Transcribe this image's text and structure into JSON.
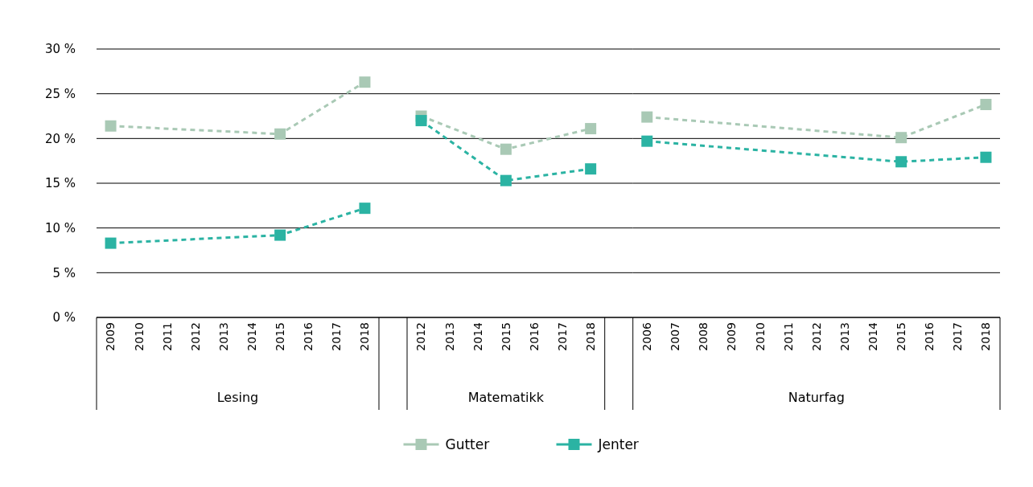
{
  "chart_data": [
    {
      "type": "line",
      "xlabel": "Lesing",
      "categories": [
        "2009",
        "2010",
        "2011",
        "2012",
        "2013",
        "2014",
        "2015",
        "2016",
        "2017",
        "2018"
      ],
      "ylim": [
        0,
        30
      ],
      "yticks": [
        {
          "value": 0,
          "label": "0 %"
        },
        {
          "value": 5,
          "label": "5 %"
        },
        {
          "value": 10,
          "label": "10 %"
        },
        {
          "value": 15,
          "label": "15 %"
        },
        {
          "value": 20,
          "label": "20 %"
        },
        {
          "value": 25,
          "label": "25 %"
        },
        {
          "value": 30,
          "label": "30 %"
        }
      ],
      "grid": "y",
      "marker": "square",
      "line_style": "dashed",
      "legend": "bottom",
      "series": [
        {
          "name": "Gutter",
          "color": "#a9c9b5",
          "values": [
            21.4,
            null,
            null,
            null,
            null,
            null,
            20.5,
            null,
            null,
            26.3
          ]
        },
        {
          "name": "Jenter",
          "color": "#2bb3a3",
          "values": [
            8.3,
            null,
            null,
            null,
            null,
            null,
            9.2,
            null,
            null,
            12.2
          ]
        }
      ]
    },
    {
      "type": "line",
      "xlabel": "Matematikk",
      "categories": [
        "2012",
        "2013",
        "2014",
        "2015",
        "2016",
        "2017",
        "2018"
      ],
      "ylim": [
        0,
        30
      ],
      "yticks": [
        0,
        5,
        10,
        15,
        20,
        25,
        30
      ],
      "tick_labels": "x",
      "grid": "y",
      "marker": "square",
      "line_style": "dashed",
      "series": [
        {
          "color": "#a9c9b5",
          "values": [
            22.5,
            null,
            null,
            18.8,
            null,
            null,
            21.1
          ]
        },
        {
          "color": "#2bb3a3",
          "values": [
            22.0,
            null,
            null,
            15.3,
            null,
            null,
            16.6
          ]
        }
      ]
    },
    {
      "type": "line",
      "xlabel": "Naturfag",
      "categories": [
        "2006",
        "2007",
        "2008",
        "2009",
        "2010",
        "2011",
        "2012",
        "2013",
        "2014",
        "2015",
        "2016",
        "2017",
        "2018"
      ],
      "ylim": [
        0,
        30
      ],
      "yticks": [
        0,
        5,
        10,
        15,
        20,
        25,
        30
      ],
      "tick_labels": "x",
      "grid": "y",
      "marker": "square",
      "line_style": "dashed",
      "series": [
        {
          "color": "#a9c9b5",
          "values": [
            22.4,
            null,
            null,
            null,
            null,
            null,
            null,
            null,
            null,
            20.1,
            null,
            null,
            23.8
          ]
        },
        {
          "color": "#2bb3a3",
          "values": [
            19.7,
            null,
            null,
            null,
            null,
            null,
            null,
            null,
            null,
            17.4,
            null,
            null,
            17.9
          ]
        }
      ]
    }
  ]
}
